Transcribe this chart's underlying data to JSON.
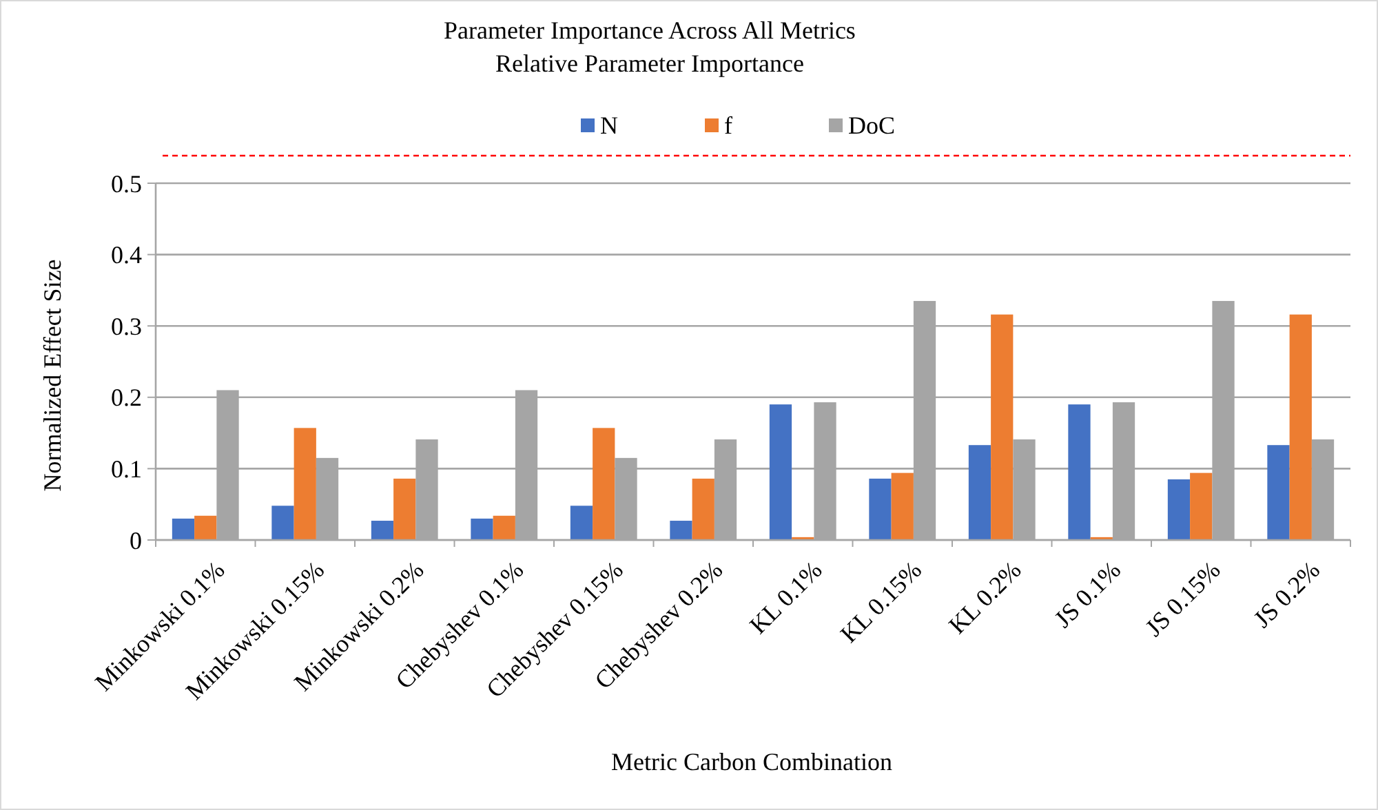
{
  "chart_data": {
    "type": "bar",
    "title": "Parameter Importance Across All Metrics",
    "subtitle": "Relative Parameter Importance",
    "xlabel": "Metric Carbon Combination",
    "ylabel": "Normalized Effect Size",
    "categories": [
      "Minkowski 0.1%",
      "Minkowski 0.15%",
      "Minkowski 0.2%",
      "Chebyshev 0.1%",
      "Chebyshev 0.15%",
      "Chebyshev 0.2%",
      "KL 0.1%",
      "KL 0.15%",
      "KL 0.2%",
      "JS 0.1%",
      "JS 0.15%",
      "JS 0.2%"
    ],
    "series": [
      {
        "name": "N",
        "color": "#4472c4",
        "values": [
          0.03,
          0.048,
          0.027,
          0.03,
          0.048,
          0.027,
          0.19,
          0.086,
          0.133,
          0.19,
          0.085,
          0.133
        ]
      },
      {
        "name": "f",
        "color": "#ed7d31",
        "values": [
          0.034,
          0.157,
          0.086,
          0.034,
          0.157,
          0.086,
          0.004,
          0.094,
          0.316,
          0.004,
          0.094,
          0.316
        ]
      },
      {
        "name": "DoC",
        "color": "#a5a5a5",
        "values": [
          0.21,
          0.115,
          0.141,
          0.21,
          0.115,
          0.141,
          0.193,
          0.335,
          0.141,
          0.193,
          0.335,
          0.141
        ]
      }
    ],
    "ylim": [
      0,
      0.5
    ],
    "yticks": [
      0,
      0.1,
      0.2,
      0.3,
      0.4,
      0.5
    ],
    "grid": "y",
    "legend": "top"
  }
}
